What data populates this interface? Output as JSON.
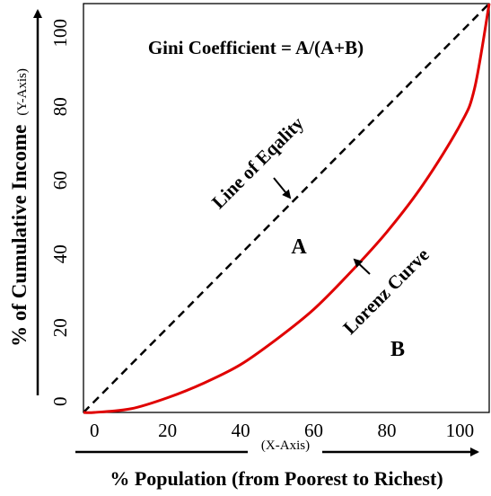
{
  "chart_data": {
    "type": "line",
    "title": "",
    "formula": "Gini Coefficient = A/(A+B)",
    "xlabel": "% Population (from Poorest to Richest)",
    "xaxis_note": "(X-Axis)",
    "ylabel": "% of Cumulative Income",
    "yaxis_note": "(Y-Axis)",
    "xlim": [
      -3,
      108
    ],
    "ylim": [
      -3,
      108
    ],
    "x_ticks": [
      "0",
      "20",
      "40",
      "60",
      "80",
      "100"
    ],
    "y_ticks": [
      "0",
      "20",
      "40",
      "60",
      "80",
      "100"
    ],
    "series": [
      {
        "name": "Line of Eqality",
        "style": "dashed",
        "color": "#000000",
        "x": [
          -3,
          108
        ],
        "y": [
          -3,
          108
        ]
      },
      {
        "name": "Lorenz Curve",
        "style": "solid",
        "color": "#e00000",
        "x": [
          -3,
          0,
          10,
          20,
          30,
          40,
          50,
          60,
          70,
          80,
          90,
          100,
          104,
          108
        ],
        "y": [
          -3,
          -3,
          -2,
          1,
          5,
          10,
          17,
          25,
          35,
          46,
          59,
          75,
          85,
          108
        ]
      }
    ],
    "region_labels": [
      "A",
      "B"
    ],
    "grid": false
  }
}
